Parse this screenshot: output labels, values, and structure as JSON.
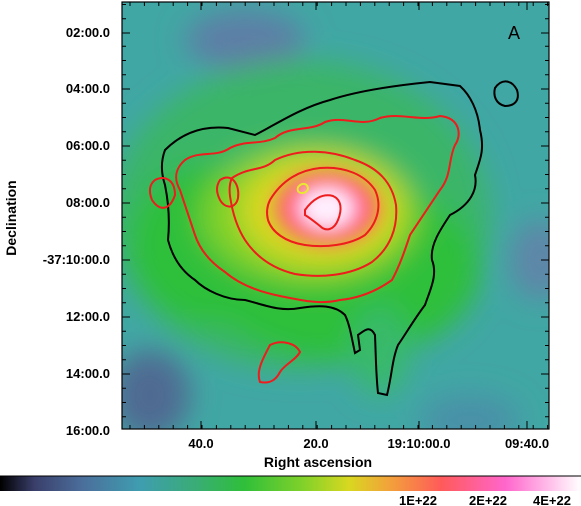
{
  "chart_data": {
    "type": "heatmap",
    "panel_label": "A",
    "xlabel": "Right ascension",
    "ylabel": "Declination",
    "x_tick_labels": [
      "40.0",
      "20.0",
      "19:10:00.0",
      "09:40.0"
    ],
    "y_tick_labels": [
      "02:00.0",
      "04:00.0",
      "06:00.0",
      "08:00.0",
      "-37:10:00.0",
      "12:00.0",
      "14:00.0",
      "16:00.0"
    ],
    "colorbar": {
      "tick_labels": [
        "1E+22",
        "2E+22",
        "4E+22"
      ],
      "colors": [
        "#000000",
        "#3a3f6b",
        "#4b6d9a",
        "#3f9db0",
        "#3aab7a",
        "#2fbf3a",
        "#7fd12a",
        "#d8d820",
        "#f2a23a",
        "#ff5a5a",
        "#ff66cc",
        "#ffffff"
      ]
    },
    "contours": [
      {
        "name": "",
        "color": "#000000"
      },
      {
        "name": "",
        "color": "#ee1c1c"
      },
      {
        "name": "",
        "color": "#e8e830"
      }
    ],
    "grid": false
  }
}
